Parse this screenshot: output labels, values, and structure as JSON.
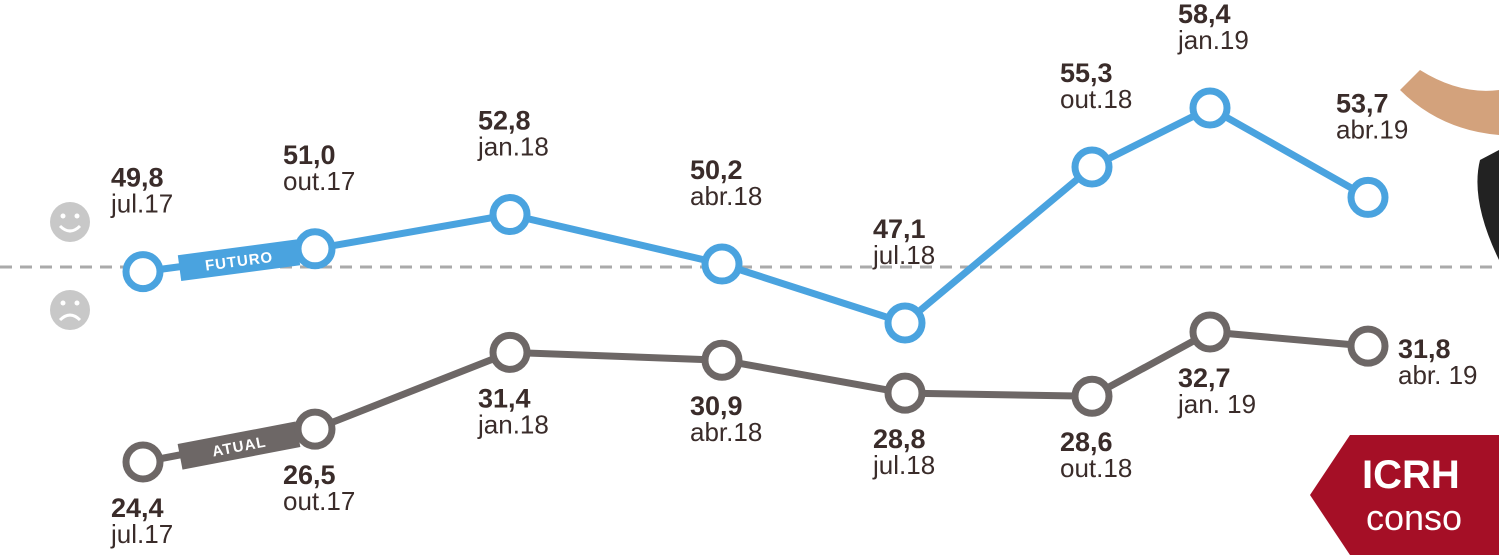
{
  "chart_data": {
    "type": "line",
    "series": [
      {
        "name": "FUTURO",
        "color": "#4aa3df",
        "values": [
          49.8,
          51.0,
          52.8,
          50.2,
          47.1,
          55.3,
          58.4,
          53.7
        ],
        "value_labels": [
          "49,8",
          "51,0",
          "52,8",
          "50,2",
          "47,1",
          "55,3",
          "58,4",
          "53,7"
        ],
        "dates": [
          "jul.17",
          "out.17",
          "jan.18",
          "abr.18",
          "jul.18",
          "out.18",
          "jan.19",
          "abr.19"
        ]
      },
      {
        "name": "ATUAL",
        "color": "#6d6766",
        "values": [
          24.4,
          26.5,
          31.4,
          30.9,
          28.8,
          28.6,
          32.7,
          31.8
        ],
        "value_labels": [
          "24,4",
          "26,5",
          "31,4",
          "30,9",
          "28,8",
          "28,6",
          "32,7",
          "31,8"
        ],
        "dates": [
          "jul.17",
          "out.17",
          "jan.18",
          "abr.18",
          "jul.18",
          "out.18",
          "jan. 19",
          "abr. 19"
        ]
      }
    ],
    "badge": {
      "title": "ICRH",
      "subtitle": "conso"
    }
  }
}
